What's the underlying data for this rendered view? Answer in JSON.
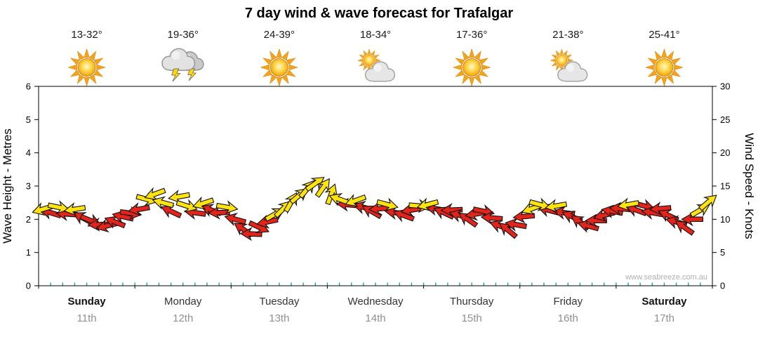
{
  "title": "7 day wind & wave forecast for Trafalgar",
  "watermark": "www.seabreeze.com.au",
  "forecast": {
    "temps": [
      "13-32°",
      "19-36°",
      "24-39°",
      "18-34°",
      "17-36°",
      "21-38°",
      "25-41°"
    ],
    "icons": [
      "sunny",
      "thunderstorm",
      "sunny",
      "partly-cloudy",
      "sunny",
      "partly-cloudy",
      "sunny"
    ]
  },
  "axes": {
    "left_label": "Wave Height - Metres",
    "right_label": "Wind Speed - Knots",
    "left_ticks": [
      0,
      1,
      2,
      3,
      4,
      5,
      6
    ],
    "right_ticks": [
      0,
      5,
      10,
      15,
      20,
      25,
      30
    ]
  },
  "days": [
    {
      "name": "Sunday",
      "date": "11th",
      "bold": true
    },
    {
      "name": "Monday",
      "date": "12th",
      "bold": false
    },
    {
      "name": "Tuesday",
      "date": "13th",
      "bold": false
    },
    {
      "name": "Wednesday",
      "date": "14th",
      "bold": false
    },
    {
      "name": "Thursday",
      "date": "15th",
      "bold": false
    },
    {
      "name": "Friday",
      "date": "16th",
      "bold": false
    },
    {
      "name": "Saturday",
      "date": "17th",
      "bold": true
    }
  ],
  "colors": {
    "arrow_red": "#e3241b",
    "arrow_yellow": "#ffe30f",
    "arrow_outline": "#111111",
    "tick_teal": "#18a5a5",
    "date_gray": "#909090",
    "watermark_gray": "#b0b0b0"
  },
  "chart_data": {
    "type": "scatter",
    "title": "7 day wind & wave forecast for Trafalgar",
    "ylabel_left": "Wave Height - Metres",
    "ylabel_right": "Wind Speed - Knots",
    "y_left_range": [
      0,
      6
    ],
    "y_right_range": [
      0,
      30
    ],
    "legend": "arrow glyphs show wind speed (knots axis) and direction; colors alternate red/yellow",
    "categories": [
      "Sunday 11th",
      "Monday 12th",
      "Tuesday 13th",
      "Wednesday 14th",
      "Thursday 15th",
      "Friday 16th",
      "Saturday 17th"
    ],
    "points_per_day": 12,
    "points": [
      [
        11.5,
        163,
        "y"
      ],
      [
        11,
        197,
        "r"
      ],
      [
        11.8,
        12,
        "y"
      ],
      [
        10.8,
        184,
        "r"
      ],
      [
        11.5,
        171,
        "y"
      ],
      [
        10.2,
        208,
        "r"
      ],
      [
        9.8,
        22,
        "r"
      ],
      [
        9.2,
        178,
        "r"
      ],
      [
        9,
        166,
        "r"
      ],
      [
        9.6,
        201,
        "r"
      ],
      [
        10.4,
        193,
        "r"
      ],
      [
        10.9,
        8,
        "r"
      ],
      [
        11.5,
        170,
        "r"
      ],
      [
        13,
        15,
        "y"
      ],
      [
        13.8,
        160,
        "y"
      ],
      [
        12.5,
        195,
        "y"
      ],
      [
        11.2,
        205,
        "r"
      ],
      [
        13.4,
        170,
        "y"
      ],
      [
        12,
        18,
        "y"
      ],
      [
        11,
        188,
        "r"
      ],
      [
        12.4,
        162,
        "y"
      ],
      [
        11.4,
        200,
        "r"
      ],
      [
        11,
        178,
        "r"
      ],
      [
        11.8,
        10,
        "y"
      ],
      [
        10,
        195,
        "r"
      ],
      [
        8.5,
        215,
        "r"
      ],
      [
        7.8,
        182,
        "r"
      ],
      [
        8.8,
        25,
        "r"
      ],
      [
        9.6,
        168,
        "r"
      ],
      [
        10.8,
        330,
        "y"
      ],
      [
        11.6,
        315,
        "y"
      ],
      [
        12.6,
        300,
        "y"
      ],
      [
        13.6,
        320,
        "y"
      ],
      [
        14.6,
        310,
        "y"
      ],
      [
        15.4,
        325,
        "y"
      ],
      [
        14.8,
        305,
        "y"
      ],
      [
        13.8,
        290,
        "y"
      ],
      [
        13,
        200,
        "y"
      ],
      [
        12.2,
        185,
        "r"
      ],
      [
        12.8,
        160,
        "y"
      ],
      [
        11.8,
        195,
        "r"
      ],
      [
        11.2,
        210,
        "r"
      ],
      [
        11.6,
        175,
        "r"
      ],
      [
        12.2,
        15,
        "y"
      ],
      [
        11,
        188,
        "r"
      ],
      [
        10.6,
        200,
        "r"
      ],
      [
        11.4,
        170,
        "r"
      ],
      [
        12,
        5,
        "y"
      ],
      [
        12.2,
        165,
        "y"
      ],
      [
        11.6,
        190,
        "r"
      ],
      [
        11,
        205,
        "r"
      ],
      [
        11.4,
        178,
        "r"
      ],
      [
        10.6,
        195,
        "r"
      ],
      [
        10,
        215,
        "r"
      ],
      [
        10.8,
        170,
        "r"
      ],
      [
        11.2,
        12,
        "r"
      ],
      [
        10.2,
        185,
        "r"
      ],
      [
        9,
        200,
        "r"
      ],
      [
        8.4,
        220,
        "r"
      ],
      [
        9.2,
        190,
        "r"
      ],
      [
        10.4,
        175,
        "r"
      ],
      [
        11.6,
        160,
        "y"
      ],
      [
        12.2,
        15,
        "y"
      ],
      [
        11.4,
        195,
        "r"
      ],
      [
        12,
        170,
        "y"
      ],
      [
        11,
        188,
        "r"
      ],
      [
        10.4,
        205,
        "r"
      ],
      [
        9.6,
        215,
        "r"
      ],
      [
        9,
        195,
        "r"
      ],
      [
        9.8,
        180,
        "r"
      ],
      [
        10.6,
        165,
        "r"
      ],
      [
        11.2,
        190,
        "r"
      ],
      [
        11.6,
        185,
        "r"
      ],
      [
        12.2,
        170,
        "y"
      ],
      [
        11.4,
        200,
        "r"
      ],
      [
        12,
        15,
        "r"
      ],
      [
        11,
        190,
        "r"
      ],
      [
        11.6,
        175,
        "r"
      ],
      [
        10.6,
        205,
        "r"
      ],
      [
        9.6,
        195,
        "r"
      ],
      [
        8.8,
        215,
        "r"
      ],
      [
        10,
        180,
        "r"
      ],
      [
        11.4,
        330,
        "y"
      ],
      [
        12.6,
        320,
        "y"
      ]
    ]
  }
}
